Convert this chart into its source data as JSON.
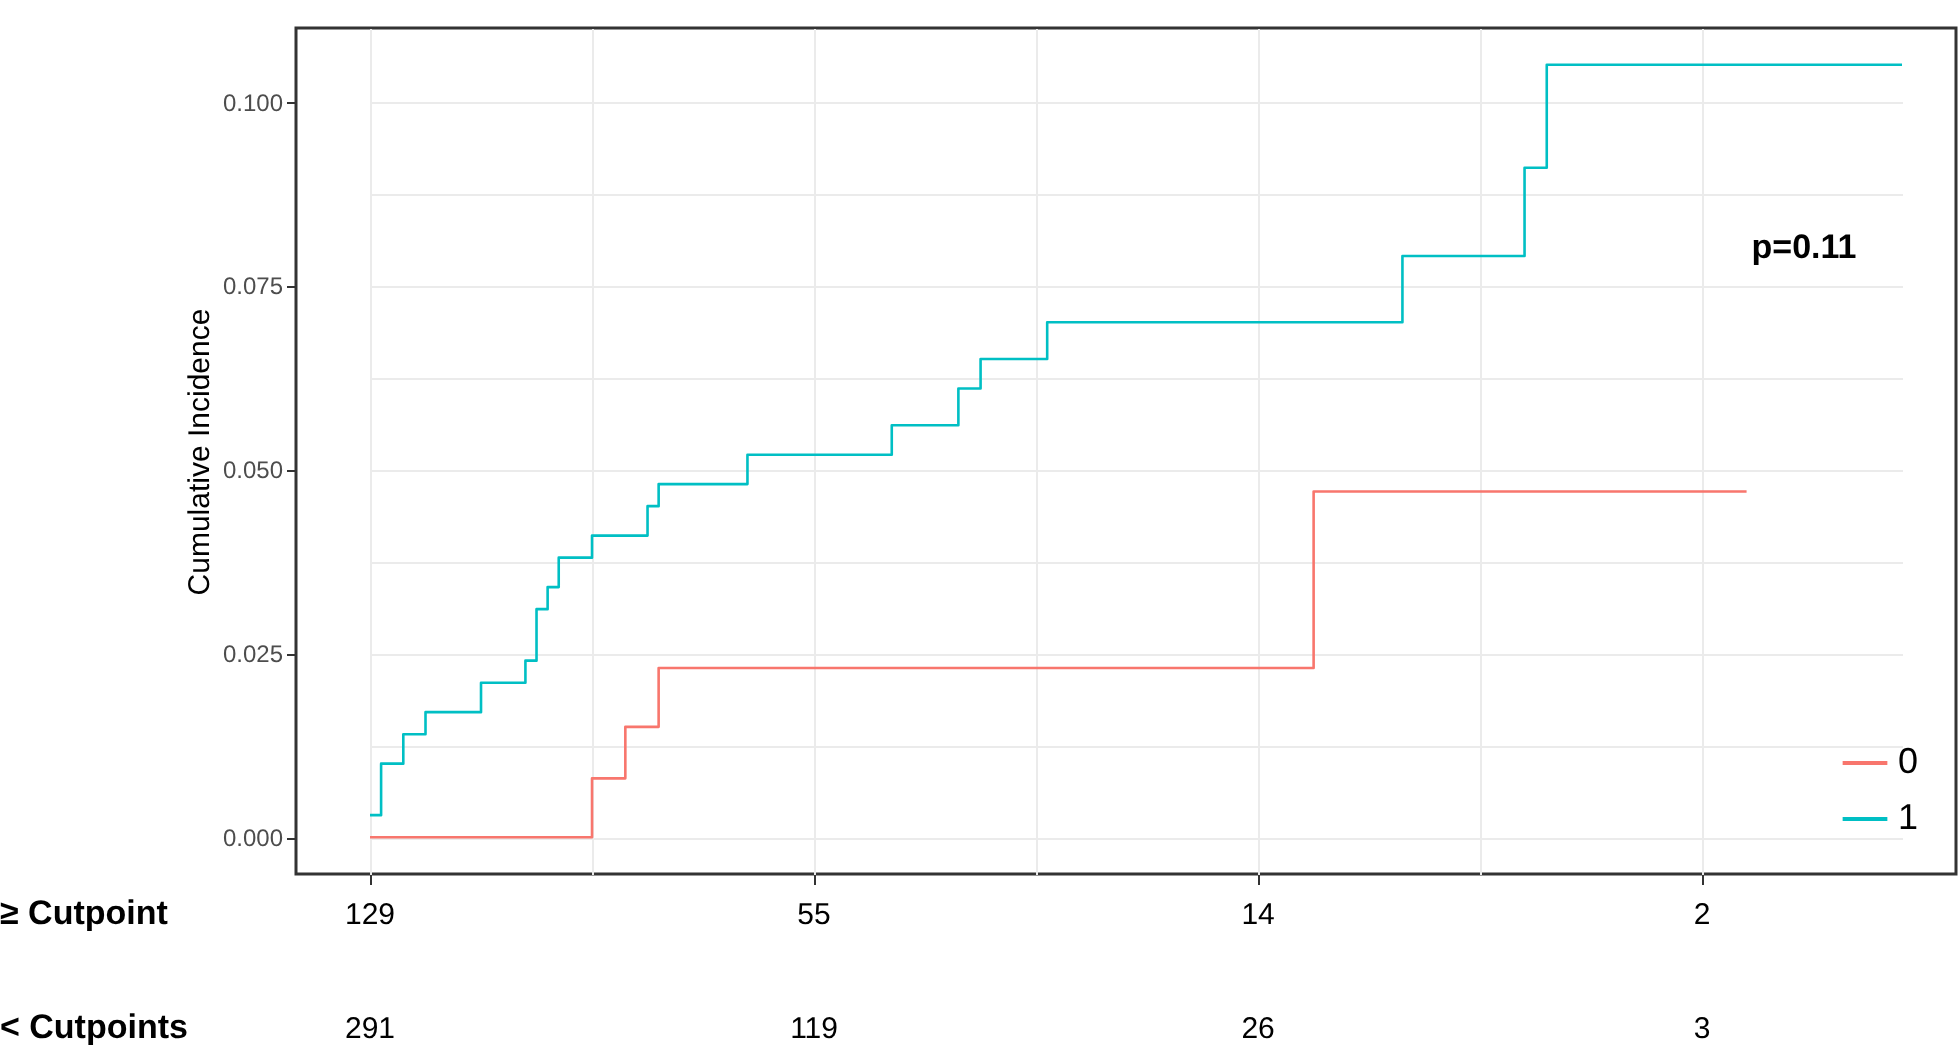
{
  "chart_data": {
    "type": "step",
    "ylabel": "Cumulative Incidence",
    "categories": [
      null,
      null,
      null,
      null,
      null,
      null,
      null,
      null,
      null,
      null,
      null,
      null,
      null,
      null,
      null,
      null,
      null,
      null,
      null,
      null,
      null,
      null,
      null,
      null,
      null,
      null,
      null,
      null,
      null,
      null,
      null,
      null,
      null,
      null,
      null,
      null,
      null,
      null,
      null,
      null,
      null,
      null,
      null,
      null,
      null,
      null,
      null,
      null,
      null,
      null,
      null,
      null,
      null,
      null,
      null,
      null,
      null,
      null,
      null,
      null,
      null,
      null,
      null,
      null,
      null,
      null,
      null,
      null,
      null,
      null,
      null,
      null,
      null,
      null,
      null,
      null,
      null,
      null,
      null,
      null,
      null,
      null,
      null,
      null,
      null,
      null,
      null,
      null,
      null,
      null,
      null,
      null,
      null,
      null,
      null,
      null,
      null,
      null,
      null,
      null,
      null,
      null,
      null,
      null,
      null,
      null,
      null,
      null,
      null,
      null,
      null,
      null,
      null,
      null,
      null,
      null,
      null,
      null,
      null,
      null,
      null,
      null,
      null,
      null,
      null,
      null,
      null,
      null,
      null,
      null,
      null,
      null,
      null,
      null,
      null,
      null,
      null,
      null,
      null
    ],
    "series": [
      {
        "name": "0",
        "color": "#f8766d",
        "values": [
          0,
          0,
          0,
          0,
          0,
          0,
          0,
          0,
          0,
          0,
          0,
          0,
          0,
          0,
          0,
          0,
          0,
          0,
          0,
          0,
          0.008,
          0.008,
          0.008,
          0.015,
          0.015,
          0.015,
          0.023,
          0.023,
          0.023,
          0.023,
          0.023,
          0.023,
          0.023,
          0.023,
          0.023,
          0.023,
          0.023,
          0.023,
          0.023,
          0.023,
          0.023,
          0.023,
          0.023,
          0.023,
          0.023,
          0.023,
          0.023,
          0.023,
          0.023,
          0.023,
          0.023,
          0.023,
          0.023,
          0.023,
          0.023,
          0.023,
          0.023,
          0.023,
          0.023,
          0.023,
          0.023,
          0.023,
          0.023,
          0.023,
          0.023,
          0.023,
          0.023,
          0.023,
          0.023,
          0.023,
          0.023,
          0.023,
          0.023,
          0.023,
          0.023,
          0.023,
          0.023,
          0.023,
          0.023,
          0.023,
          0.023,
          0.023,
          0.023,
          0.023,
          0.023,
          0.047,
          0.047,
          0.047,
          0.047,
          0.047,
          0.047,
          0.047,
          0.047,
          0.047,
          0.047,
          0.047,
          0.047,
          0.047,
          0.047,
          0.047,
          0.047,
          0.047,
          0.047,
          0.047,
          0.047,
          0.047,
          0.047,
          0.047,
          0.047,
          0.047,
          0.047,
          0.047,
          0.047,
          0.047,
          0.047,
          0.047,
          0.047,
          0.047,
          0.047,
          0.047,
          0.047,
          0.047,
          0.047,
          0.047,
          0.047,
          null,
          null,
          null,
          null,
          null,
          null,
          null,
          null,
          null,
          null,
          null,
          null,
          null,
          null
        ]
      },
      {
        "name": "1",
        "color": "#00bfc4",
        "values": [
          0.003,
          0.01,
          0.01,
          0.014,
          0.014,
          0.017,
          0.017,
          0.017,
          0.017,
          0.017,
          0.021,
          0.021,
          0.021,
          0.021,
          0.024,
          0.031,
          0.034,
          0.038,
          0.038,
          0.038,
          0.041,
          0.041,
          0.041,
          0.041,
          0.041,
          0.045,
          0.048,
          0.048,
          0.048,
          0.048,
          0.048,
          0.048,
          0.048,
          0.048,
          0.052,
          0.052,
          0.052,
          0.052,
          0.052,
          0.052,
          0.052,
          0.052,
          0.052,
          0.052,
          0.052,
          0.052,
          0.052,
          0.056,
          0.056,
          0.056,
          0.056,
          0.056,
          0.056,
          0.061,
          0.061,
          0.065,
          0.065,
          0.065,
          0.065,
          0.065,
          0.065,
          0.07,
          0.07,
          0.07,
          0.07,
          0.07,
          0.07,
          0.07,
          0.07,
          0.07,
          0.07,
          0.07,
          0.07,
          0.07,
          0.07,
          0.07,
          0.07,
          0.07,
          0.07,
          0.07,
          0.07,
          0.07,
          0.07,
          0.07,
          0.07,
          0.07,
          0.07,
          0.07,
          0.07,
          0.07,
          0.07,
          0.07,
          0.07,
          0.079,
          0.079,
          0.079,
          0.079,
          0.079,
          0.079,
          0.079,
          0.079,
          0.079,
          0.079,
          0.079,
          0.091,
          0.091,
          0.105,
          0.105,
          0.105,
          0.105,
          0.105,
          0.105,
          0.105,
          0.105,
          0.105,
          0.105,
          0.105,
          0.105,
          0.105,
          0.105,
          0.105,
          0.105,
          0.105,
          0.105,
          0.105,
          0.105,
          0.105,
          0.105,
          0.105,
          0.105,
          0.105,
          0.105,
          0.105,
          0.105,
          0.105,
          0.105,
          0.105,
          0.105,
          0.105
        ]
      }
    ],
    "ylim": [
      -0.005,
      0.11
    ],
    "yticks": [
      {
        "value": 0,
        "label": "0.000"
      },
      {
        "value": 0.025,
        "label": "0.025"
      },
      {
        "value": 0.05,
        "label": "0.050"
      },
      {
        "value": 0.075,
        "label": "0.075"
      },
      {
        "value": 0.1,
        "label": "0.100"
      }
    ],
    "tick_labels": "y",
    "grid": true,
    "legend": "bottom right",
    "annotations": [
      "p=0.11",
      "≥ Cutpoint",
      "129",
      "55",
      "14",
      "2",
      "< Cutpoints",
      "291",
      "119",
      "26",
      "3"
    ]
  }
}
